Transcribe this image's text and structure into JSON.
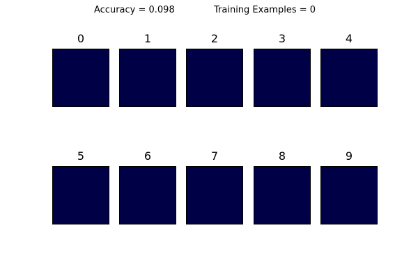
{
  "figure": {
    "accuracy_text": "Accuracy = 0.098",
    "training_text": "Training Examples = 0",
    "panel_color": "#000046",
    "panels": [
      {
        "label": "0"
      },
      {
        "label": "1"
      },
      {
        "label": "2"
      },
      {
        "label": "3"
      },
      {
        "label": "4"
      },
      {
        "label": "5"
      },
      {
        "label": "6"
      },
      {
        "label": "7"
      },
      {
        "label": "8"
      },
      {
        "label": "9"
      }
    ]
  }
}
